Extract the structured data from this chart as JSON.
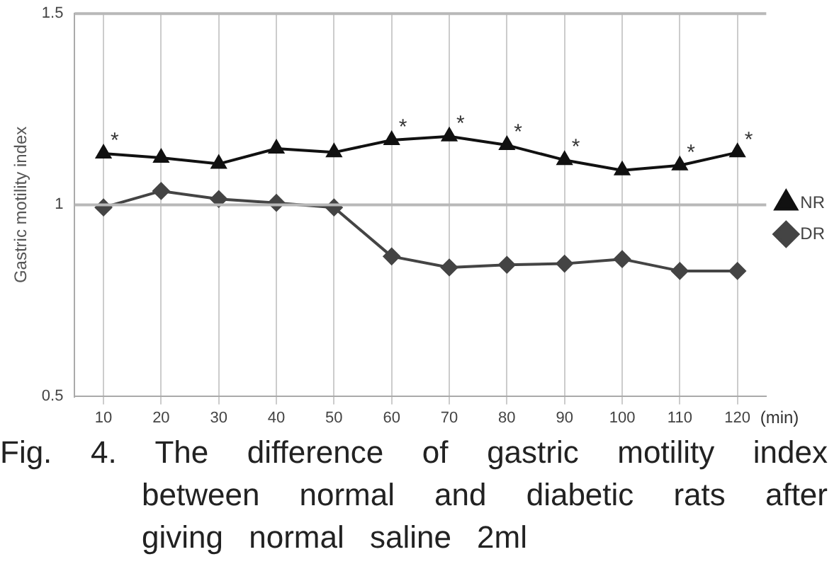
{
  "chart_data": {
    "type": "line",
    "xlabel": "(min)",
    "ylabel": "Gastric motility index",
    "categories": [
      "10",
      "20",
      "30",
      "40",
      "50",
      "60",
      "70",
      "80",
      "90",
      "100",
      "110",
      "120"
    ],
    "ylim": [
      0.5,
      1.5
    ],
    "yticks": [
      0.5,
      1,
      1.5
    ],
    "grid": "x",
    "legend": "right",
    "ref_lines": [
      {
        "axis": "y",
        "value": 1,
        "color": "#b8b8b8"
      }
    ],
    "series": [
      {
        "name": "NR",
        "color": "#111111",
        "marker": "triangle",
        "values": [
          1.134,
          1.123,
          1.107,
          1.147,
          1.137,
          1.169,
          1.179,
          1.156,
          1.117,
          1.09,
          1.103,
          1.137
        ]
      },
      {
        "name": "DR",
        "color": "#444444",
        "marker": "diamond",
        "values": [
          0.993,
          1.036,
          1.015,
          1.005,
          0.993,
          0.865,
          0.836,
          0.843,
          0.846,
          0.858,
          0.827,
          0.827
        ]
      }
    ],
    "annotations": [
      {
        "text": "*",
        "x": "10",
        "y": 1.134
      },
      {
        "text": "*",
        "x": "60",
        "y": 1.169
      },
      {
        "text": "*",
        "x": "70",
        "y": 1.179
      },
      {
        "text": "*",
        "x": "80",
        "y": 1.156
      },
      {
        "text": "*",
        "x": "90",
        "y": 1.117
      },
      {
        "text": "*",
        "x": "110",
        "y": 1.103
      },
      {
        "text": "*",
        "x": "120",
        "y": 1.137
      },
      "Fig. 4. The difference of gastric motility index between normal and diabetic rats after giving normal saline 2ml"
    ]
  }
}
